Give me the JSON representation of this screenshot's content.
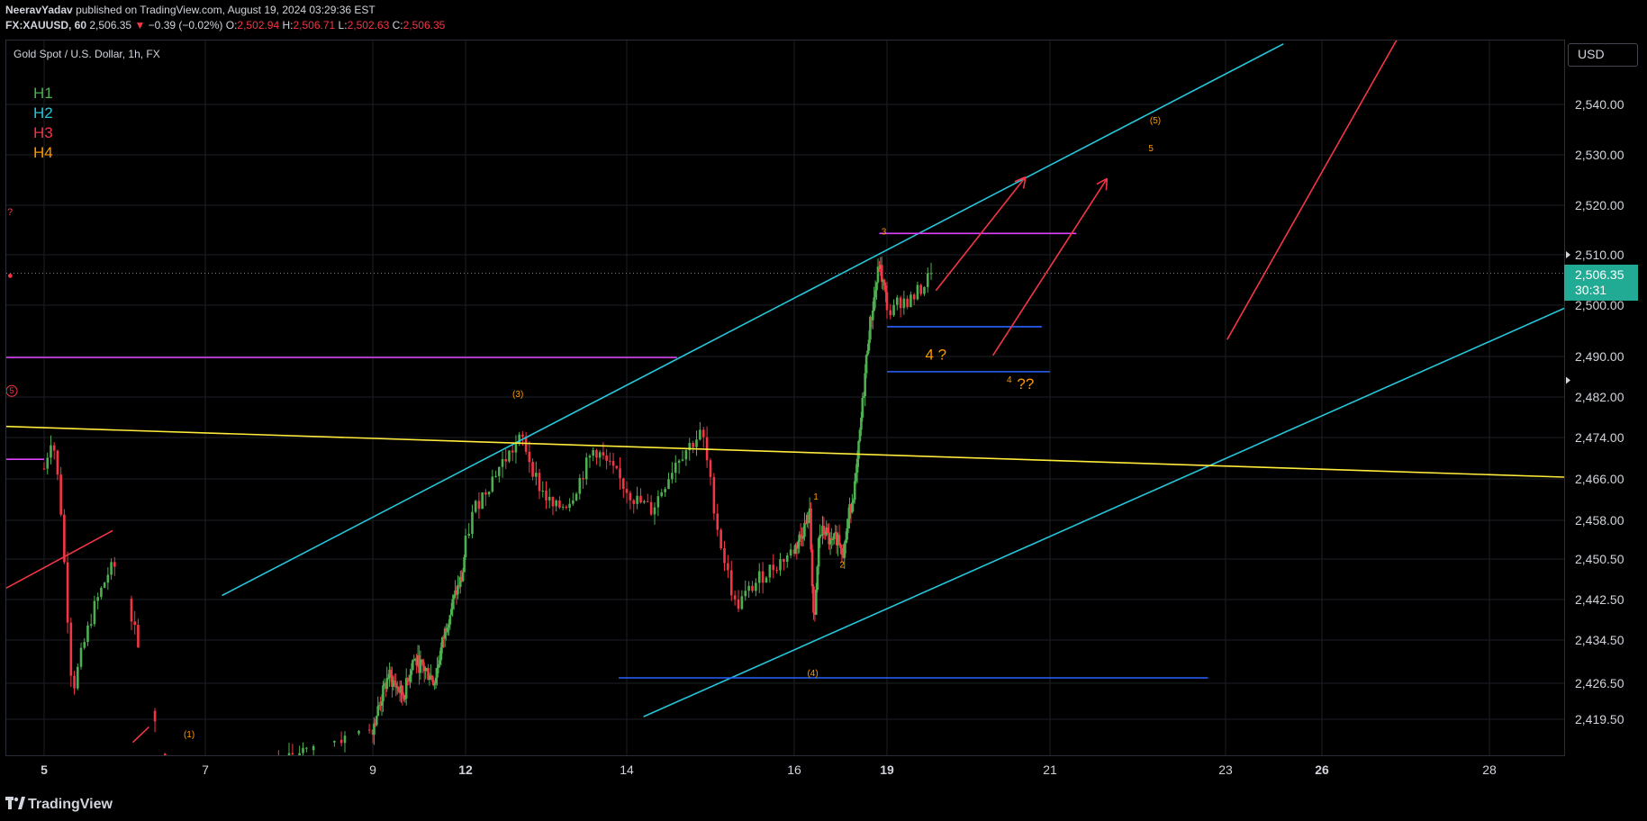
{
  "header": {
    "author": "NeeravYadav",
    "published_text": "published on TradingView.com, August 19, 2024 03:29:36 EST",
    "symbol_interval": "FX:XAUUSD, 60",
    "last_price": "2,506.35",
    "change": "−0.39 (−0.02%)",
    "o_label": "O:",
    "o_value": "2,502.94",
    "h_label": "H:",
    "h_value": "2,506.71",
    "l_label": "L:",
    "l_value": "2,502.63",
    "c_label": "C:",
    "c_value": "2,506.35"
  },
  "chart_title": "Gold Spot / U.S. Dollar, 1h, FX",
  "legend": [
    {
      "label": "H1",
      "color": "#4caf50"
    },
    {
      "label": "H2",
      "color": "#26c6da"
    },
    {
      "label": "H3",
      "color": "#f23645"
    },
    {
      "label": "H4",
      "color": "#ff9800"
    }
  ],
  "currency_button": "USD",
  "price_tag": {
    "price": "2,506.35",
    "countdown": "30:31",
    "color": "#22ab94"
  },
  "brand": "TradingView",
  "colors": {
    "up": "#4caf50",
    "down": "#f23645",
    "channel": "#26c6da",
    "magenta": "#e040fb",
    "blue": "#2962ff",
    "yellow": "#ffeb3b",
    "arrow": "#f23645",
    "wave": "#ff9800"
  },
  "chart_data": {
    "type": "candlestick",
    "title": "Gold Spot / U.S. Dollar, 1h, FX",
    "y_ticks": [
      "2,540.00",
      "2,530.00",
      "2,520.00",
      "2,510.00",
      "2,500.00",
      "2,490.00",
      "2,482.00",
      "2,474.00",
      "2,466.00",
      "2,458.00",
      "2,450.50",
      "2,442.50",
      "2,434.50",
      "2,426.50",
      "2,419.50"
    ],
    "y_tick_values": [
      2540,
      2530,
      2520,
      2510,
      2500,
      2490,
      2482,
      2474,
      2466,
      2458,
      2450.5,
      2442.5,
      2434.5,
      2426.5,
      2419.5
    ],
    "x_ticks": [
      {
        "label": "5",
        "bold": true
      },
      {
        "label": "7",
        "bold": false
      },
      {
        "label": "9",
        "bold": false
      },
      {
        "label": "12",
        "bold": true
      },
      {
        "label": "14",
        "bold": false
      },
      {
        "label": "16",
        "bold": false
      },
      {
        "label": "19",
        "bold": true
      },
      {
        "label": "21",
        "bold": false
      },
      {
        "label": "23",
        "bold": false
      },
      {
        "label": "26",
        "bold": true
      },
      {
        "label": "28",
        "bold": false
      }
    ],
    "current_price": 2506.35,
    "price_anchors": [
      [
        5.0,
        2468
      ],
      [
        5.1,
        2475
      ],
      [
        5.2,
        2462
      ],
      [
        5.35,
        2425
      ],
      [
        5.6,
        2440
      ],
      [
        5.8,
        2448
      ],
      [
        5.95,
        2450
      ],
      [
        6.2,
        2430
      ],
      [
        6.5,
        2410
      ],
      [
        7.0,
        2405
      ],
      [
        8.0,
        2412
      ],
      [
        9.0,
        2418
      ],
      [
        9.5,
        2428
      ],
      [
        10.0,
        2424
      ],
      [
        10.3,
        2431
      ],
      [
        10.7,
        2429
      ],
      [
        11.0,
        2427
      ],
      [
        11.4,
        2438
      ],
      [
        11.7,
        2444
      ],
      [
        11.9,
        2447
      ],
      [
        12.1,
        2460
      ],
      [
        12.4,
        2468
      ],
      [
        12.7,
        2474
      ],
      [
        12.9,
        2465
      ],
      [
        13.1,
        2460
      ],
      [
        13.3,
        2462
      ],
      [
        13.6,
        2472
      ],
      [
        13.9,
        2466
      ],
      [
        14.1,
        2462
      ],
      [
        14.3,
        2460
      ],
      [
        14.6,
        2470
      ],
      [
        14.9,
        2475
      ],
      [
        15.1,
        2455
      ],
      [
        15.3,
        2441
      ],
      [
        15.6,
        2447
      ],
      [
        15.9,
        2451
      ],
      [
        16.2,
        2455
      ],
      [
        16.5,
        2459
      ],
      [
        16.65,
        2436
      ],
      [
        16.8,
        2455
      ],
      [
        17.0,
        2456
      ],
      [
        17.2,
        2453
      ],
      [
        17.4,
        2455
      ],
      [
        17.6,
        2452
      ],
      [
        17.8,
        2460
      ],
      [
        18.0,
        2466
      ],
      [
        18.2,
        2480
      ],
      [
        18.4,
        2494
      ],
      [
        18.6,
        2502
      ],
      [
        18.75,
        2508
      ],
      [
        18.85,
        2505
      ],
      [
        18.95,
        2502
      ],
      [
        19.05,
        2498
      ],
      [
        19.15,
        2501
      ],
      [
        19.3,
        2501
      ],
      [
        19.45,
        2504
      ],
      [
        19.55,
        2506.35
      ]
    ],
    "annotations": {
      "wave_labels": [
        {
          "text": "(1)",
          "x": 6.8,
          "y": 2416.5
        },
        {
          "text": "(3)",
          "x": 12.65,
          "y": 2482.5
        },
        {
          "text": "(4)",
          "x": 16.6,
          "y": 2428.3
        },
        {
          "text": "1",
          "x": 16.7,
          "y": 2462.5
        },
        {
          "text": "2",
          "x": 17.55,
          "y": 2449.3
        },
        {
          "text": "3",
          "x": 18.9,
          "y": 2514.6
        },
        {
          "text": "(5)",
          "x": 22.2,
          "y": 2536.7
        },
        {
          "text": "5",
          "x": 22.15,
          "y": 2531.2
        }
      ],
      "big_labels": [
        {
          "text": "4 ?",
          "x": 19.6,
          "y": 2490.2,
          "size": 17
        },
        {
          "text": "??",
          "x": 20.7,
          "y": 2484.4,
          "size": 17
        }
      ],
      "small_labels": [
        {
          "text": "4",
          "x": 20.5,
          "y": 2485.3,
          "size": 10
        }
      ],
      "left_markers": [
        {
          "text": "?",
          "y": 2518.5
        },
        {
          "text": "●",
          "y": 2505.8
        }
      ],
      "circled_label": {
        "text": "5",
        "y": 2483.2
      },
      "channel_upper": [
        [
          7.2,
          2443.3
        ],
        [
          24.8,
          2552
        ]
      ],
      "channel_lower": [
        [
          14.2,
          2420
        ],
        [
          30.2,
          2509
        ]
      ],
      "trendline_yellow": [
        [
          4.5,
          2476.2
        ],
        [
          30.5,
          2465.5
        ]
      ],
      "horizontal_magenta": [
        {
          "x1": 4.5,
          "x2": 14.6,
          "y": 2489.8
        },
        {
          "x1": 4.5,
          "x2": 5.0,
          "y": 2469.8
        },
        {
          "x1": 18.75,
          "x2": 21.3,
          "y": 2514.3
        }
      ],
      "horizontal_blue": [
        {
          "x1": 19.0,
          "x2": 20.9,
          "y": 2495.8
        },
        {
          "x1": 19.0,
          "x2": 21.0,
          "y": 2487.0
        },
        {
          "x1": 13.9,
          "x2": 22.8,
          "y": 2427.5
        }
      ],
      "arrows_red": [
        [
          [
            19.6,
            2502.9
          ],
          [
            20.7,
            2525.6
          ]
        ],
        [
          [
            20.3,
            2490.2
          ],
          [
            21.65,
            2525.3
          ]
        ]
      ],
      "line_red": [
        [
          [
            23.05,
            2493.3
          ],
          [
            26.9,
            2553
          ]
        ],
        [
          [
            4.5,
            2444.5
          ],
          [
            5.85,
            2456
          ]
        ],
        [
          [
            6.1,
            2415
          ],
          [
            6.3,
            2418
          ]
        ]
      ]
    }
  }
}
